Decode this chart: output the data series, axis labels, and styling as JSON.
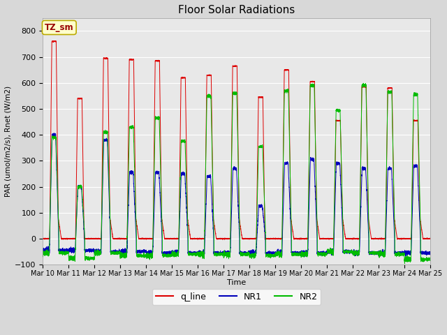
{
  "title": "Floor Solar Radiations",
  "xlabel": "Time",
  "ylabel": "PAR (umol/m2/s), Rnet (W/m2)",
  "ylim": [
    -100,
    850
  ],
  "yticks": [
    -100,
    0,
    100,
    200,
    300,
    400,
    500,
    600,
    700,
    800
  ],
  "bg_color": "#d8d8d8",
  "plot_bg_color": "#e8e8e8",
  "legend_labels": [
    "q_line",
    "NR1",
    "NR2"
  ],
  "legend_colors": [
    "#dd0000",
    "#0000bb",
    "#00bb00"
  ],
  "annotation_text": "TZ_sm",
  "annotation_bg": "#ffffcc",
  "annotation_border": "#bbaa00",
  "num_days": 15,
  "start_day": 10,
  "peaks_red": [
    760,
    540,
    695,
    690,
    685,
    620,
    630,
    665,
    545,
    650,
    605,
    455,
    585,
    580,
    455
  ],
  "peaks_blue": [
    400,
    200,
    380,
    255,
    255,
    250,
    240,
    270,
    125,
    290,
    305,
    290,
    270,
    270,
    280
  ],
  "peaks_green": [
    390,
    200,
    410,
    430,
    465,
    375,
    550,
    560,
    355,
    570,
    590,
    495,
    590,
    565,
    555
  ],
  "shoulder_red": [
    80,
    0,
    80,
    80,
    80,
    80,
    80,
    80,
    0,
    80,
    80,
    80,
    80,
    80,
    80
  ],
  "night_red": [
    0,
    0,
    0,
    0,
    0,
    0,
    0,
    0,
    0,
    0,
    0,
    0,
    0,
    0,
    0
  ],
  "night_blue": [
    -45,
    -45,
    -50,
    -50,
    -55,
    -55,
    -55,
    -55,
    -55,
    -55,
    -55,
    -50,
    -55,
    -55,
    -55
  ],
  "night_green": [
    -55,
    -75,
    -55,
    -65,
    -65,
    -60,
    -60,
    -60,
    -65,
    -60,
    -60,
    -50,
    -55,
    -60,
    -80
  ]
}
